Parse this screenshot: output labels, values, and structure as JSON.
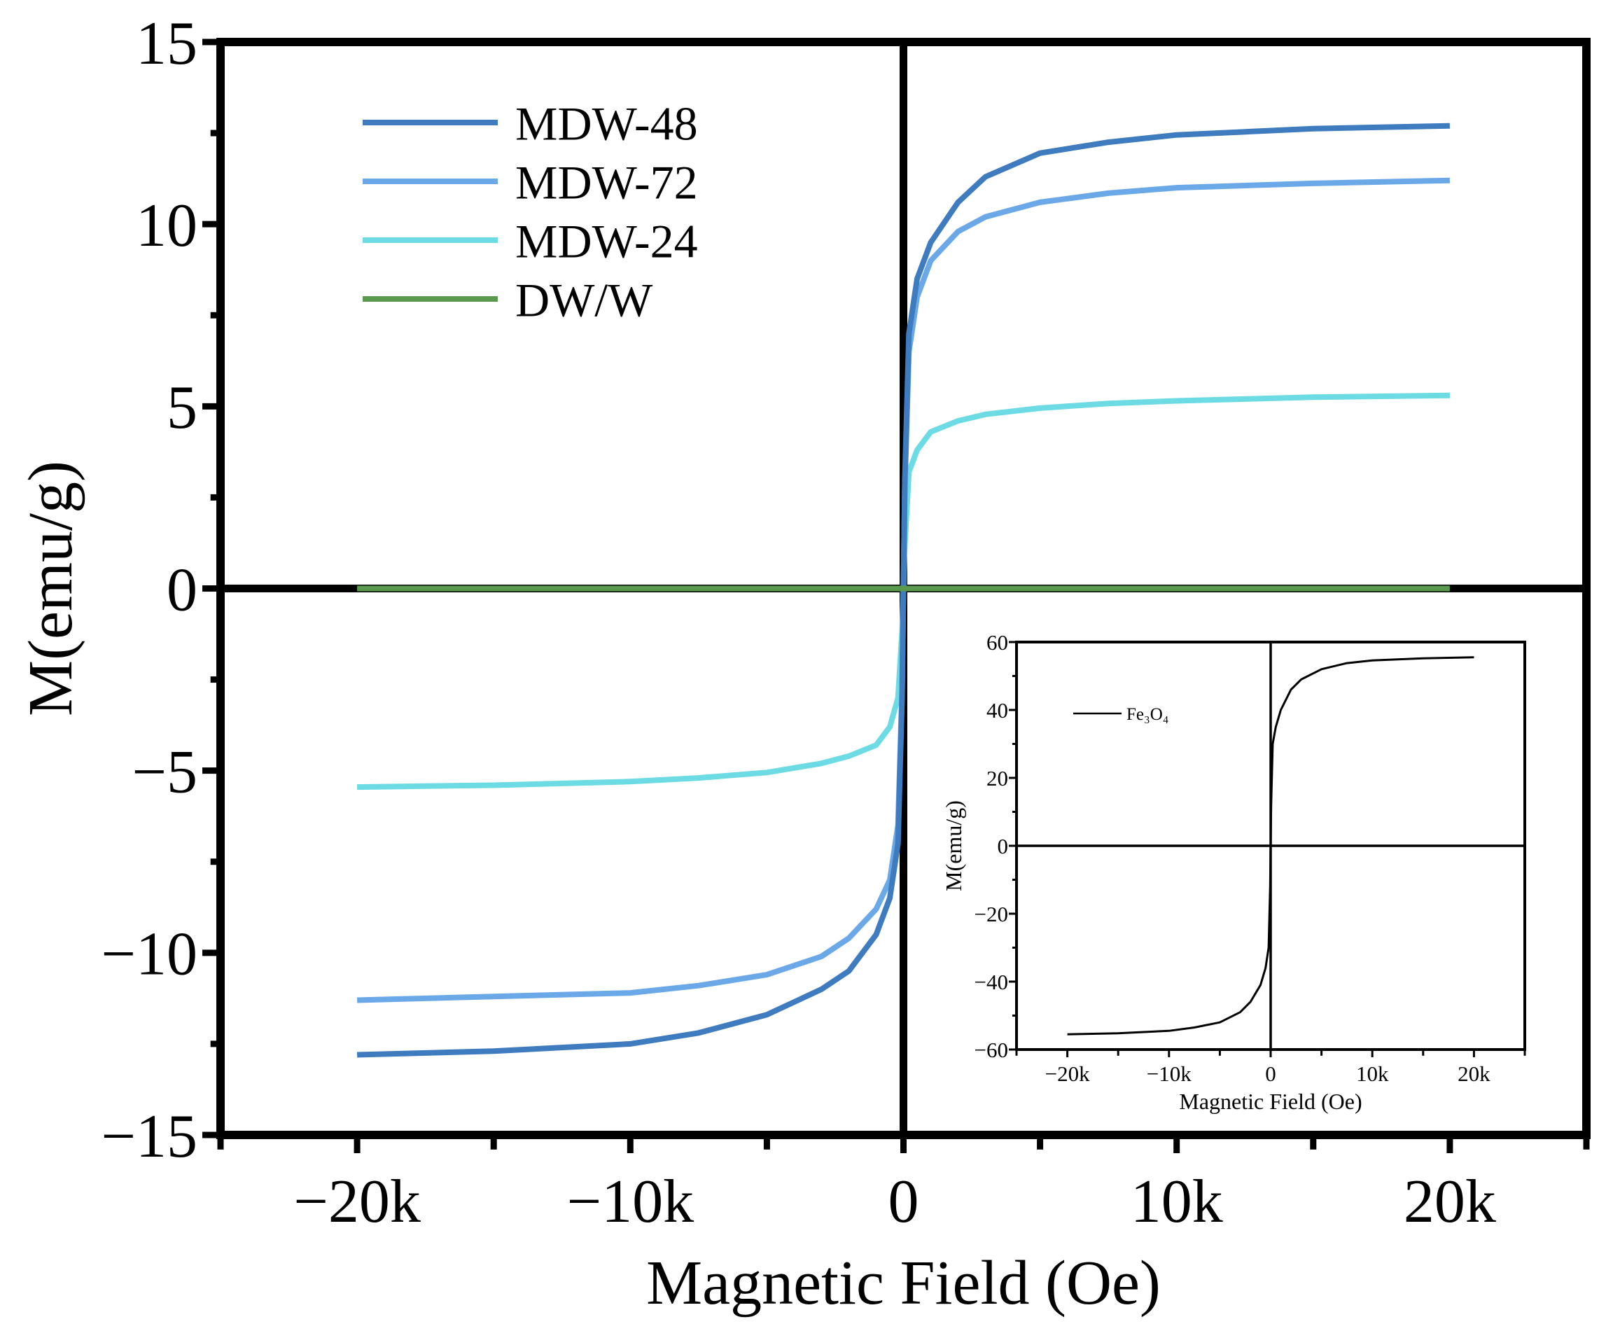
{
  "chart_data": [
    {
      "type": "line",
      "title": "",
      "xlabel": "Magnetic Field (Oe)",
      "ylabel": "M(emu/g)",
      "xlim": [
        -25000,
        25000
      ],
      "ylim": [
        -15,
        15
      ],
      "xticks": [
        -20000,
        -10000,
        0,
        10000,
        20000
      ],
      "xtick_labels": [
        "−20k",
        "−10k",
        "0",
        "10k",
        "20k"
      ],
      "xminor_ticks": [
        -25000,
        -15000,
        -5000,
        5000,
        15000,
        25000
      ],
      "yticks": [
        -15,
        -10,
        -5,
        0,
        5,
        10,
        15
      ],
      "ytick_labels": [
        "−15",
        "−10",
        "−5",
        "0",
        "5",
        "10",
        "15"
      ],
      "yminor_ticks": [
        -12.5,
        -7.5,
        -2.5,
        2.5,
        7.5,
        12.5
      ],
      "legend_position": "top-left",
      "grid": false,
      "x": [
        -20000,
        -15000,
        -10000,
        -7500,
        -5000,
        -3000,
        -2000,
        -1000,
        -500,
        -200,
        -50,
        0,
        50,
        200,
        500,
        1000,
        2000,
        3000,
        5000,
        7500,
        10000,
        15000,
        20000
      ],
      "series": [
        {
          "name": "MDW-48",
          "color": "#3f7bbf",
          "values": [
            -12.8,
            -12.7,
            -12.5,
            -12.2,
            -11.7,
            -11.0,
            -10.5,
            -9.5,
            -8.5,
            -7.0,
            -3.0,
            0,
            3.0,
            7.0,
            8.5,
            9.5,
            10.6,
            11.3,
            11.95,
            12.25,
            12.45,
            12.62,
            12.7
          ]
        },
        {
          "name": "MDW-72",
          "color": "#6aa8e8",
          "values": [
            -11.3,
            -11.2,
            -11.1,
            -10.9,
            -10.6,
            -10.1,
            -9.6,
            -8.8,
            -8.0,
            -6.5,
            -2.8,
            0,
            2.8,
            6.5,
            8.0,
            9.0,
            9.8,
            10.2,
            10.6,
            10.85,
            11.0,
            11.12,
            11.2
          ]
        },
        {
          "name": "MDW-24",
          "color": "#6cdbe3",
          "values": [
            -5.45,
            -5.4,
            -5.3,
            -5.2,
            -5.05,
            -4.8,
            -4.6,
            -4.3,
            -3.8,
            -3.0,
            -1.2,
            0,
            1.2,
            3.2,
            3.8,
            4.3,
            4.6,
            4.78,
            4.95,
            5.08,
            5.15,
            5.25,
            5.3
          ]
        },
        {
          "name": "DW/W",
          "color": "#5a9a4e",
          "values": [
            0,
            0,
            0,
            0,
            0,
            0,
            0,
            0,
            0,
            0,
            0,
            0,
            0,
            0,
            0,
            0,
            0,
            0,
            0,
            0,
            0,
            0,
            0
          ]
        }
      ]
    },
    {
      "type": "line",
      "title": "",
      "xlabel": "Magnetic Field (Oe)",
      "ylabel": "M(emu/g)",
      "xlim": [
        -25000,
        25000
      ],
      "ylim": [
        -60,
        60
      ],
      "xticks": [
        -20000,
        -10000,
        0,
        10000,
        20000
      ],
      "xtick_labels": [
        "−20k",
        "−10k",
        "0",
        "10k",
        "20k"
      ],
      "xminor_ticks": [
        -25000,
        -15000,
        -5000,
        5000,
        15000,
        25000
      ],
      "yticks": [
        -60,
        -40,
        -20,
        0,
        20,
        40,
        60
      ],
      "ytick_labels": [
        "−60",
        "−40",
        "−20",
        "0",
        "20",
        "40",
        "60"
      ],
      "yminor_ticks": [
        -50,
        -30,
        -10,
        10,
        30,
        50
      ],
      "legend_position": "top-left",
      "grid": false,
      "x": [
        -20000,
        -15000,
        -10000,
        -7500,
        -5000,
        -3000,
        -2000,
        -1000,
        -500,
        -200,
        -50,
        0,
        50,
        200,
        500,
        1000,
        2000,
        3000,
        5000,
        7500,
        10000,
        15000,
        20000
      ],
      "series": [
        {
          "name": "Fe₃O₄",
          "color": "#000000",
          "values": [
            -55.5,
            -55.2,
            -54.5,
            -53.5,
            -52.0,
            -49.0,
            -46.0,
            -41.0,
            -36.0,
            -30.0,
            -12.0,
            0,
            12.0,
            30.0,
            35.0,
            40.0,
            46.0,
            49.0,
            52.0,
            53.8,
            54.6,
            55.2,
            55.5
          ]
        }
      ]
    }
  ]
}
